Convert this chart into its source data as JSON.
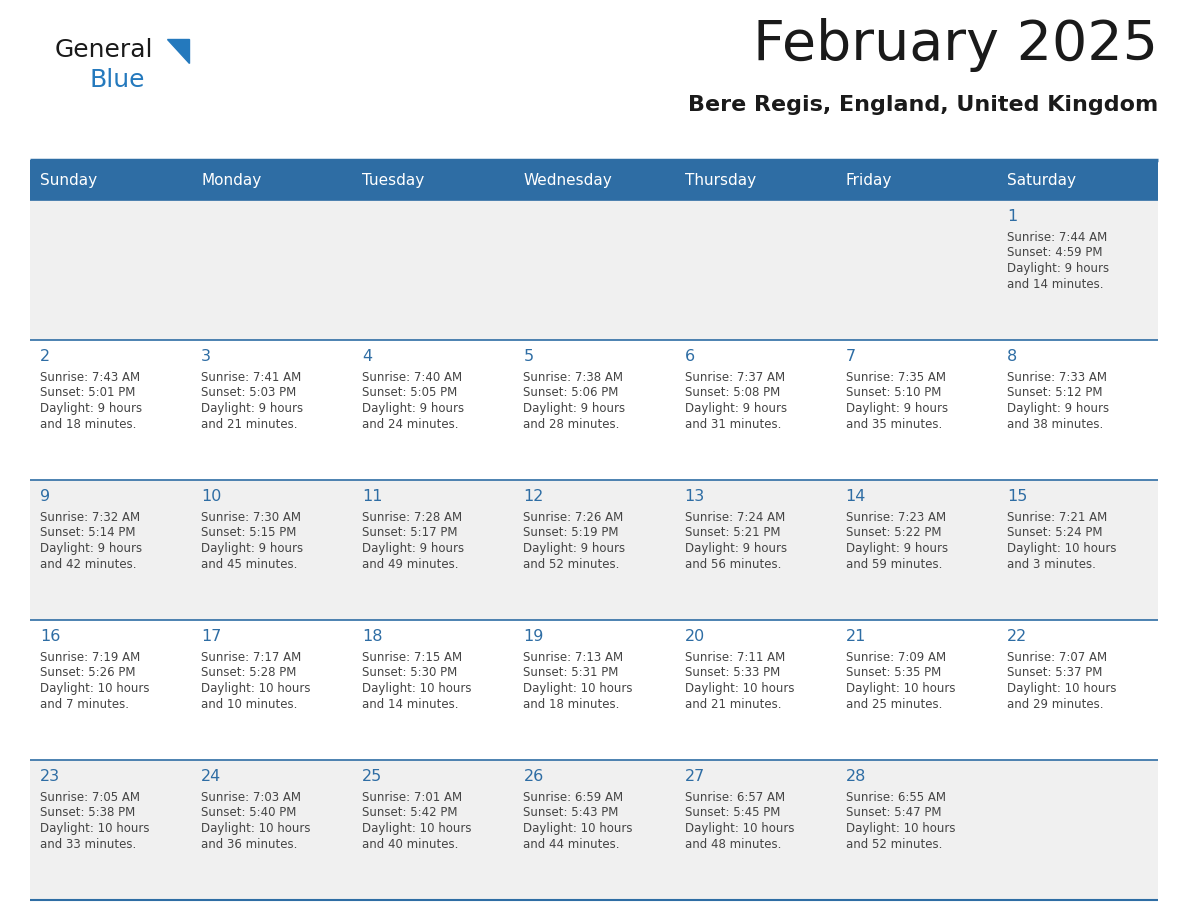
{
  "title": "February 2025",
  "subtitle": "Bere Regis, England, United Kingdom",
  "days_of_week": [
    "Sunday",
    "Monday",
    "Tuesday",
    "Wednesday",
    "Thursday",
    "Friday",
    "Saturday"
  ],
  "header_bg": "#2E6DA4",
  "header_text": "#FFFFFF",
  "cell_bg_row0": "#F0F0F0",
  "cell_bg_row1": "#FFFFFF",
  "cell_bg_row2": "#F0F0F0",
  "cell_bg_row3": "#FFFFFF",
  "cell_bg_row4": "#F0F0F0",
  "border_color": "#2E6DA4",
  "day_number_color": "#2E6DA4",
  "text_color": "#444444",
  "title_color": "#1a1a1a",
  "logo_general_color": "#1a1a1a",
  "logo_blue_color": "#2479BD",
  "logo_triangle_color": "#2479BD",
  "calendar": [
    [
      null,
      null,
      null,
      null,
      null,
      null,
      {
        "day": 1,
        "sunrise": "7:44 AM",
        "sunset": "4:59 PM",
        "daylight": "9 hours and 14 minutes."
      }
    ],
    [
      {
        "day": 2,
        "sunrise": "7:43 AM",
        "sunset": "5:01 PM",
        "daylight": "9 hours and 18 minutes."
      },
      {
        "day": 3,
        "sunrise": "7:41 AM",
        "sunset": "5:03 PM",
        "daylight": "9 hours and 21 minutes."
      },
      {
        "day": 4,
        "sunrise": "7:40 AM",
        "sunset": "5:05 PM",
        "daylight": "9 hours and 24 minutes."
      },
      {
        "day": 5,
        "sunrise": "7:38 AM",
        "sunset": "5:06 PM",
        "daylight": "9 hours and 28 minutes."
      },
      {
        "day": 6,
        "sunrise": "7:37 AM",
        "sunset": "5:08 PM",
        "daylight": "9 hours and 31 minutes."
      },
      {
        "day": 7,
        "sunrise": "7:35 AM",
        "sunset": "5:10 PM",
        "daylight": "9 hours and 35 minutes."
      },
      {
        "day": 8,
        "sunrise": "7:33 AM",
        "sunset": "5:12 PM",
        "daylight": "9 hours and 38 minutes."
      }
    ],
    [
      {
        "day": 9,
        "sunrise": "7:32 AM",
        "sunset": "5:14 PM",
        "daylight": "9 hours and 42 minutes."
      },
      {
        "day": 10,
        "sunrise": "7:30 AM",
        "sunset": "5:15 PM",
        "daylight": "9 hours and 45 minutes."
      },
      {
        "day": 11,
        "sunrise": "7:28 AM",
        "sunset": "5:17 PM",
        "daylight": "9 hours and 49 minutes."
      },
      {
        "day": 12,
        "sunrise": "7:26 AM",
        "sunset": "5:19 PM",
        "daylight": "9 hours and 52 minutes."
      },
      {
        "day": 13,
        "sunrise": "7:24 AM",
        "sunset": "5:21 PM",
        "daylight": "9 hours and 56 minutes."
      },
      {
        "day": 14,
        "sunrise": "7:23 AM",
        "sunset": "5:22 PM",
        "daylight": "9 hours and 59 minutes."
      },
      {
        "day": 15,
        "sunrise": "7:21 AM",
        "sunset": "5:24 PM",
        "daylight": "10 hours and 3 minutes."
      }
    ],
    [
      {
        "day": 16,
        "sunrise": "7:19 AM",
        "sunset": "5:26 PM",
        "daylight": "10 hours and 7 minutes."
      },
      {
        "day": 17,
        "sunrise": "7:17 AM",
        "sunset": "5:28 PM",
        "daylight": "10 hours and 10 minutes."
      },
      {
        "day": 18,
        "sunrise": "7:15 AM",
        "sunset": "5:30 PM",
        "daylight": "10 hours and 14 minutes."
      },
      {
        "day": 19,
        "sunrise": "7:13 AM",
        "sunset": "5:31 PM",
        "daylight": "10 hours and 18 minutes."
      },
      {
        "day": 20,
        "sunrise": "7:11 AM",
        "sunset": "5:33 PM",
        "daylight": "10 hours and 21 minutes."
      },
      {
        "day": 21,
        "sunrise": "7:09 AM",
        "sunset": "5:35 PM",
        "daylight": "10 hours and 25 minutes."
      },
      {
        "day": 22,
        "sunrise": "7:07 AM",
        "sunset": "5:37 PM",
        "daylight": "10 hours and 29 minutes."
      }
    ],
    [
      {
        "day": 23,
        "sunrise": "7:05 AM",
        "sunset": "5:38 PM",
        "daylight": "10 hours and 33 minutes."
      },
      {
        "day": 24,
        "sunrise": "7:03 AM",
        "sunset": "5:40 PM",
        "daylight": "10 hours and 36 minutes."
      },
      {
        "day": 25,
        "sunrise": "7:01 AM",
        "sunset": "5:42 PM",
        "daylight": "10 hours and 40 minutes."
      },
      {
        "day": 26,
        "sunrise": "6:59 AM",
        "sunset": "5:43 PM",
        "daylight": "10 hours and 44 minutes."
      },
      {
        "day": 27,
        "sunrise": "6:57 AM",
        "sunset": "5:45 PM",
        "daylight": "10 hours and 48 minutes."
      },
      {
        "day": 28,
        "sunrise": "6:55 AM",
        "sunset": "5:47 PM",
        "daylight": "10 hours and 52 minutes."
      },
      null
    ]
  ],
  "row_bg_colors": [
    "#F0F0F0",
    "#FFFFFF",
    "#F0F0F0",
    "#FFFFFF",
    "#F0F0F0"
  ]
}
